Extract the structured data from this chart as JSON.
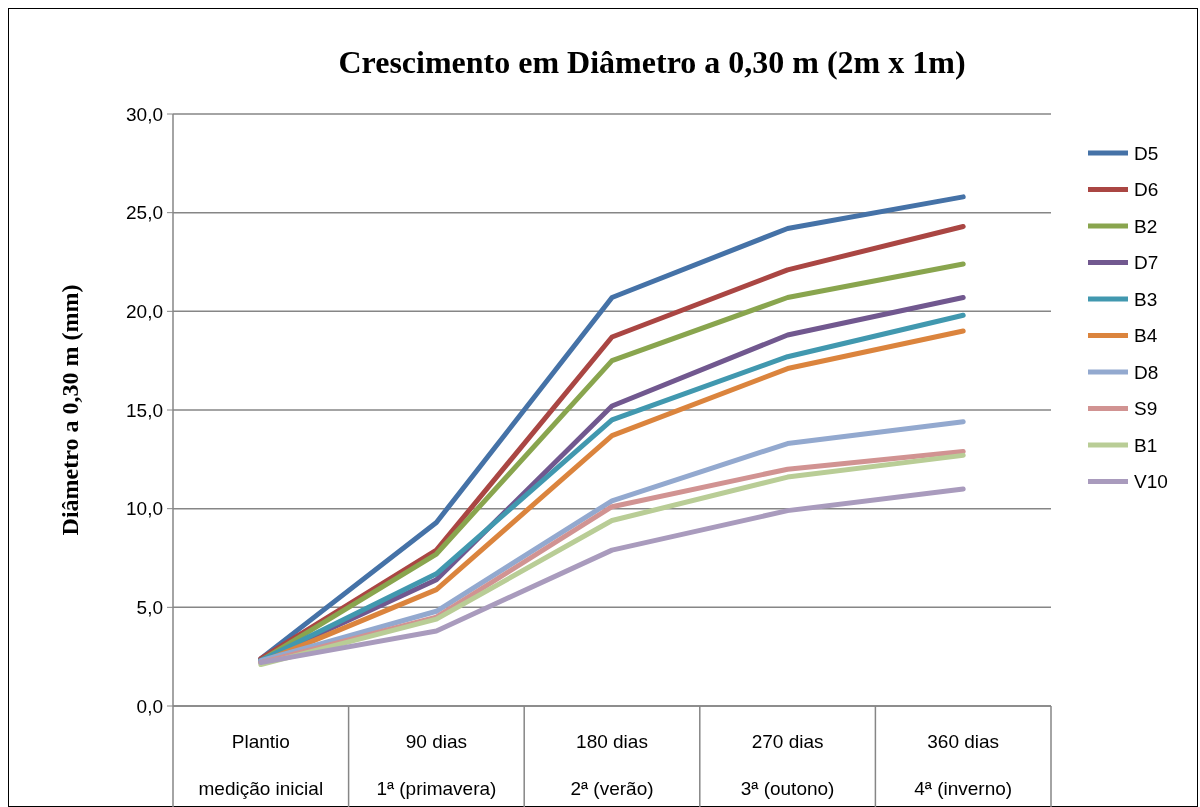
{
  "chart_data": {
    "type": "line",
    "title": "Crescimento em Diâmetro  a 0,30 m (2m x 1m)",
    "ylabel": "Diâmetro a 0,30 m (mm)",
    "categories": [
      "Plantio\nmedição inicial",
      "90 dias\n1ª (primavera)",
      "180 dias\n2ª (verão)",
      "270 dias\n3ª (outono)",
      "360 dias\n4ª (inverno)"
    ],
    "ylim": [
      0,
      30
    ],
    "yticks": [
      {
        "value": 0,
        "label": "0,0"
      },
      {
        "value": 5,
        "label": "5,0"
      },
      {
        "value": 10,
        "label": "10,0"
      },
      {
        "value": 15,
        "label": "15,0"
      },
      {
        "value": 20,
        "label": "20,0"
      },
      {
        "value": 25,
        "label": "25,0"
      },
      {
        "value": 30,
        "label": "30,0"
      }
    ],
    "grid": "y",
    "legend": "right",
    "marker": "none",
    "line_style": "solid",
    "series": [
      {
        "name": "D5",
        "color": "#4572a7",
        "values": [
          2.4,
          9.3,
          20.7,
          24.2,
          25.8
        ]
      },
      {
        "name": "D6",
        "color": "#aa4643",
        "values": [
          2.4,
          7.9,
          18.7,
          22.1,
          24.3
        ]
      },
      {
        "name": "B2",
        "color": "#89a54e",
        "values": [
          2.3,
          7.7,
          17.5,
          20.7,
          22.4
        ]
      },
      {
        "name": "D7",
        "color": "#71588f",
        "values": [
          2.3,
          6.4,
          15.2,
          18.8,
          20.7
        ]
      },
      {
        "name": "B3",
        "color": "#4198af",
        "values": [
          2.3,
          6.7,
          14.5,
          17.7,
          19.8
        ]
      },
      {
        "name": "B4",
        "color": "#db843d",
        "values": [
          2.2,
          5.9,
          13.7,
          17.1,
          19.0
        ]
      },
      {
        "name": "D8",
        "color": "#93a9cf",
        "values": [
          2.3,
          4.8,
          10.4,
          13.3,
          14.4
        ]
      },
      {
        "name": "S9",
        "color": "#d19392",
        "values": [
          2.2,
          4.5,
          10.1,
          12.0,
          12.9
        ]
      },
      {
        "name": "B1",
        "color": "#b9cd96",
        "values": [
          2.1,
          4.4,
          9.4,
          11.6,
          12.7
        ]
      },
      {
        "name": "V10",
        "color": "#a99bbd",
        "values": [
          2.2,
          3.8,
          7.9,
          9.9,
          11.0
        ]
      }
    ]
  }
}
